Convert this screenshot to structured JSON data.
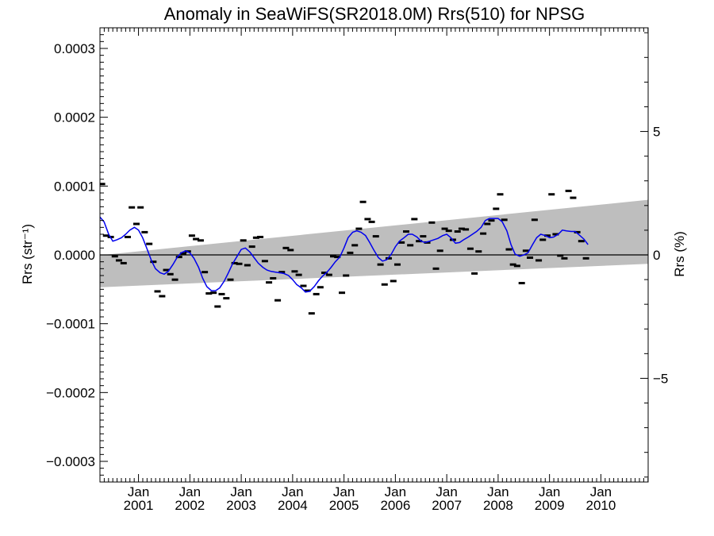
{
  "chart_data": {
    "type": "line",
    "title": "Anomaly in SeaWiFS(SR2018.0M) Rrs(510) for NPSG",
    "ylabel_left": "Rrs (str⁻¹)",
    "ylabel_right": "Rrs (%)",
    "ylim": [
      -0.00033,
      0.00033
    ],
    "ylim_right": [
      -9.2,
      9.2
    ],
    "xlim": [
      2000.25,
      2010.92
    ],
    "y_ticks": [
      {
        "value": 0.0003,
        "label": "0.0003"
      },
      {
        "value": 0.0002,
        "label": "0.0002"
      },
      {
        "value": 0.0001,
        "label": "0.0001"
      },
      {
        "value": 0.0,
        "label": "0.0000"
      },
      {
        "value": -0.0001,
        "label": "−0.0001"
      },
      {
        "value": -0.0002,
        "label": "−0.0002"
      },
      {
        "value": -0.0003,
        "label": "−0.0003"
      }
    ],
    "y_ticks_right": [
      {
        "value": 5,
        "label": "5"
      },
      {
        "value": 0,
        "label": "0"
      },
      {
        "value": -5,
        "label": "−5"
      }
    ],
    "x_ticks": [
      {
        "value": 2001.0,
        "month": "Jan",
        "year": "2001"
      },
      {
        "value": 2002.0,
        "month": "Jan",
        "year": "2002"
      },
      {
        "value": 2003.0,
        "month": "Jan",
        "year": "2003"
      },
      {
        "value": 2004.0,
        "month": "Jan",
        "year": "2004"
      },
      {
        "value": 2005.0,
        "month": "Jan",
        "year": "2005"
      },
      {
        "value": 2006.0,
        "month": "Jan",
        "year": "2006"
      },
      {
        "value": 2007.0,
        "month": "Jan",
        "year": "2007"
      },
      {
        "value": 2008.0,
        "month": "Jan",
        "year": "2008"
      },
      {
        "value": 2009.0,
        "month": "Jan",
        "year": "2009"
      },
      {
        "value": 2010.0,
        "month": "Jan",
        "year": "2010"
      }
    ],
    "trend_band": {
      "x": [
        2000.25,
        2010.92
      ],
      "upper": [
        -5e-07,
        8e-05
      ],
      "lower": [
        -4.7e-05,
        -1.3e-05
      ]
    },
    "zero_line": 0,
    "series": [
      {
        "kind": "monthly_anomaly",
        "points": [
          [
            2000.29,
            0.000103
          ],
          [
            2000.37,
            2.8e-05
          ],
          [
            2000.46,
            2.6e-05
          ],
          [
            2000.54,
            -2e-06
          ],
          [
            2000.62,
            -8e-06
          ],
          [
            2000.71,
            -1.2e-05
          ],
          [
            2000.79,
            2.6e-05
          ],
          [
            2000.87,
            6.9e-05
          ],
          [
            2000.96,
            4.5e-05
          ],
          [
            2001.04,
            6.9e-05
          ],
          [
            2001.12,
            3.3e-05
          ],
          [
            2001.21,
            1.6e-05
          ],
          [
            2001.29,
            -1e-05
          ],
          [
            2001.37,
            -5.3e-05
          ],
          [
            2001.46,
            -6e-05
          ],
          [
            2001.54,
            -2.2e-05
          ],
          [
            2001.62,
            -2.8e-05
          ],
          [
            2001.71,
            -3.6e-05
          ],
          [
            2001.79,
            -3e-06
          ],
          [
            2001.87,
            2e-06
          ],
          [
            2001.96,
            5e-06
          ],
          [
            2002.04,
            2.8e-05
          ],
          [
            2002.12,
            2.3e-05
          ],
          [
            2002.21,
            2.1e-05
          ],
          [
            2002.29,
            -2.5e-05
          ],
          [
            2002.37,
            -5.6e-05
          ],
          [
            2002.46,
            -5.5e-05
          ],
          [
            2002.54,
            -7.5e-05
          ],
          [
            2002.62,
            -5.7e-05
          ],
          [
            2002.71,
            -6.3e-05
          ],
          [
            2002.79,
            -3.6e-05
          ],
          [
            2002.87,
            -1.2e-05
          ],
          [
            2002.96,
            -1.3e-05
          ],
          [
            2003.04,
            2.1e-05
          ],
          [
            2003.12,
            -1.5e-05
          ],
          [
            2003.21,
            1.2e-05
          ],
          [
            2003.29,
            2.5e-05
          ],
          [
            2003.37,
            2.6e-05
          ],
          [
            2003.46,
            -9e-06
          ],
          [
            2003.54,
            -4e-05
          ],
          [
            2003.62,
            -3.4e-05
          ],
          [
            2003.71,
            -6.6e-05
          ],
          [
            2003.79,
            -2.5e-05
          ],
          [
            2003.87,
            1e-05
          ],
          [
            2003.96,
            7e-06
          ],
          [
            2004.04,
            -2.4e-05
          ],
          [
            2004.12,
            -2.9e-05
          ],
          [
            2004.21,
            -4.5e-05
          ],
          [
            2004.29,
            -5.2e-05
          ],
          [
            2004.37,
            -8.5e-05
          ],
          [
            2004.46,
            -5.7e-05
          ],
          [
            2004.54,
            -4.7e-05
          ],
          [
            2004.62,
            -2.6e-05
          ],
          [
            2004.71,
            -2.9e-05
          ],
          [
            2004.79,
            -2e-06
          ],
          [
            2004.87,
            -3e-06
          ],
          [
            2004.96,
            -5.5e-05
          ],
          [
            2005.04,
            -3e-05
          ],
          [
            2005.12,
            3e-06
          ],
          [
            2005.21,
            1.4e-05
          ],
          [
            2005.29,
            3.8e-05
          ],
          [
            2005.37,
            7.7e-05
          ],
          [
            2005.46,
            5.2e-05
          ],
          [
            2005.54,
            4.8e-05
          ],
          [
            2005.62,
            2.7e-05
          ],
          [
            2005.71,
            -1.4e-05
          ],
          [
            2005.79,
            -4.3e-05
          ],
          [
            2005.87,
            -5e-06
          ],
          [
            2005.96,
            -3.8e-05
          ],
          [
            2006.04,
            -1.4e-05
          ],
          [
            2006.12,
            1.8e-05
          ],
          [
            2006.21,
            3.4e-05
          ],
          [
            2006.29,
            1.4e-05
          ],
          [
            2006.37,
            5.2e-05
          ],
          [
            2006.46,
            2e-05
          ],
          [
            2006.54,
            2.7e-05
          ],
          [
            2006.62,
            1.8e-05
          ],
          [
            2006.71,
            4.7e-05
          ],
          [
            2006.79,
            -2e-05
          ],
          [
            2006.87,
            6e-06
          ],
          [
            2006.96,
            3.8e-05
          ],
          [
            2007.04,
            3.5e-05
          ],
          [
            2007.12,
            2.2e-05
          ],
          [
            2007.21,
            3.4e-05
          ],
          [
            2007.29,
            3.8e-05
          ],
          [
            2007.37,
            3.7e-05
          ],
          [
            2007.46,
            9e-06
          ],
          [
            2007.54,
            -2.7e-05
          ],
          [
            2007.62,
            5e-06
          ],
          [
            2007.71,
            3.1e-05
          ],
          [
            2007.79,
            4.5e-05
          ],
          [
            2007.87,
            5e-05
          ],
          [
            2007.96,
            6.7e-05
          ],
          [
            2008.04,
            8.8e-05
          ],
          [
            2008.12,
            5.1e-05
          ],
          [
            2008.21,
            8e-06
          ],
          [
            2008.29,
            -1.4e-05
          ],
          [
            2008.37,
            -1.6e-05
          ],
          [
            2008.46,
            -4.1e-05
          ],
          [
            2008.54,
            6e-06
          ],
          [
            2008.62,
            -4e-06
          ],
          [
            2008.71,
            5.1e-05
          ],
          [
            2008.79,
            -8e-06
          ],
          [
            2008.87,
            2.2e-05
          ],
          [
            2008.96,
            2.8e-05
          ],
          [
            2009.04,
            8.8e-05
          ],
          [
            2009.12,
            3e-05
          ],
          [
            2009.21,
            -1e-06
          ],
          [
            2009.29,
            -5e-06
          ],
          [
            2009.37,
            9.3e-05
          ],
          [
            2009.46,
            8.3e-05
          ],
          [
            2009.54,
            3.3e-05
          ],
          [
            2009.62,
            2e-05
          ],
          [
            2009.71,
            -5e-06
          ]
        ]
      },
      {
        "kind": "smoothed",
        "color": "#0000ee",
        "points": [
          [
            2000.25,
            5.5e-05
          ],
          [
            2000.33,
            4.8e-05
          ],
          [
            2000.42,
            3e-05
          ],
          [
            2000.5,
            2e-05
          ],
          [
            2000.58,
            2.2e-05
          ],
          [
            2000.67,
            2.5e-05
          ],
          [
            2000.75,
            3e-05
          ],
          [
            2000.83,
            3.6e-05
          ],
          [
            2000.92,
            4e-05
          ],
          [
            2001.0,
            3.6e-05
          ],
          [
            2001.08,
            2.5e-05
          ],
          [
            2001.17,
            8e-06
          ],
          [
            2001.25,
            -8e-06
          ],
          [
            2001.33,
            -2e-05
          ],
          [
            2001.42,
            -2.6e-05
          ],
          [
            2001.5,
            -2.8e-05
          ],
          [
            2001.58,
            -2.4e-05
          ],
          [
            2001.67,
            -1.4e-05
          ],
          [
            2001.75,
            -4e-06
          ],
          [
            2001.83,
            3e-06
          ],
          [
            2001.92,
            6e-06
          ],
          [
            2002.0,
            3e-06
          ],
          [
            2002.08,
            -5e-06
          ],
          [
            2002.17,
            -1.8e-05
          ],
          [
            2002.25,
            -3.4e-05
          ],
          [
            2002.33,
            -4.6e-05
          ],
          [
            2002.42,
            -5.2e-05
          ],
          [
            2002.5,
            -5.2e-05
          ],
          [
            2002.58,
            -4.8e-05
          ],
          [
            2002.67,
            -3.8e-05
          ],
          [
            2002.75,
            -2.6e-05
          ],
          [
            2002.83,
            -1.3e-05
          ],
          [
            2002.92,
            -2e-06
          ],
          [
            2003.0,
            8e-06
          ],
          [
            2003.08,
            1e-05
          ],
          [
            2003.17,
            4e-06
          ],
          [
            2003.25,
            -4e-06
          ],
          [
            2003.33,
            -1.2e-05
          ],
          [
            2003.42,
            -1.8e-05
          ],
          [
            2003.5,
            -2.2e-05
          ],
          [
            2003.58,
            -2.4e-05
          ],
          [
            2003.67,
            -2.5e-05
          ],
          [
            2003.75,
            -2.6e-05
          ],
          [
            2003.83,
            -2.7e-05
          ],
          [
            2003.92,
            -3e-05
          ],
          [
            2004.0,
            -3.6e-05
          ],
          [
            2004.08,
            -4.3e-05
          ],
          [
            2004.17,
            -4.8e-05
          ],
          [
            2004.25,
            -5.4e-05
          ],
          [
            2004.33,
            -5.3e-05
          ],
          [
            2004.42,
            -4.6e-05
          ],
          [
            2004.5,
            -3.8e-05
          ],
          [
            2004.58,
            -3.1e-05
          ],
          [
            2004.67,
            -2.5e-05
          ],
          [
            2004.75,
            -1.8e-05
          ],
          [
            2004.83,
            -1e-05
          ],
          [
            2004.92,
            -3e-06
          ],
          [
            2005.0,
            1e-05
          ],
          [
            2005.08,
            2.5e-05
          ],
          [
            2005.17,
            3.3e-05
          ],
          [
            2005.25,
            3.5e-05
          ],
          [
            2005.33,
            3.3e-05
          ],
          [
            2005.42,
            2.8e-05
          ],
          [
            2005.5,
            1.8e-05
          ],
          [
            2005.58,
            7e-06
          ],
          [
            2005.67,
            -4e-06
          ],
          [
            2005.75,
            -9e-06
          ],
          [
            2005.83,
            -7e-06
          ],
          [
            2005.92,
            1e-06
          ],
          [
            2006.0,
            1.2e-05
          ],
          [
            2006.08,
            2e-05
          ],
          [
            2006.17,
            2.5e-05
          ],
          [
            2006.25,
            3e-05
          ],
          [
            2006.33,
            3e-05
          ],
          [
            2006.42,
            2.6e-05
          ],
          [
            2006.5,
            2e-05
          ],
          [
            2006.58,
            1.8e-05
          ],
          [
            2006.67,
            2e-05
          ],
          [
            2006.75,
            2.2e-05
          ],
          [
            2006.83,
            2.4e-05
          ],
          [
            2006.92,
            2.8e-05
          ],
          [
            2007.0,
            3e-05
          ],
          [
            2007.08,
            2.5e-05
          ],
          [
            2007.17,
            1.7e-05
          ],
          [
            2007.25,
            1.8e-05
          ],
          [
            2007.33,
            2.2e-05
          ],
          [
            2007.42,
            2.6e-05
          ],
          [
            2007.5,
            3e-05
          ],
          [
            2007.58,
            3.4e-05
          ],
          [
            2007.67,
            4e-05
          ],
          [
            2007.75,
            5e-05
          ],
          [
            2007.83,
            5.3e-05
          ],
          [
            2007.92,
            5.3e-05
          ],
          [
            2008.0,
            5.3e-05
          ],
          [
            2008.08,
            4.8e-05
          ],
          [
            2008.17,
            3.5e-05
          ],
          [
            2008.25,
            1.5e-05
          ],
          [
            2008.33,
            1e-06
          ],
          [
            2008.42,
            -2e-06
          ],
          [
            2008.5,
            0.0
          ],
          [
            2008.58,
            3e-06
          ],
          [
            2008.67,
            1.5e-05
          ],
          [
            2008.75,
            2.5e-05
          ],
          [
            2008.83,
            3e-05
          ],
          [
            2008.92,
            2.8e-05
          ],
          [
            2009.0,
            2.5e-05
          ],
          [
            2009.08,
            2.6e-05
          ],
          [
            2009.17,
            3e-05
          ],
          [
            2009.25,
            3.6e-05
          ],
          [
            2009.33,
            3.5e-05
          ],
          [
            2009.42,
            3.4e-05
          ],
          [
            2009.5,
            3.4e-05
          ],
          [
            2009.58,
            2.9e-05
          ],
          [
            2009.67,
            2.3e-05
          ],
          [
            2009.75,
            1.5e-05
          ]
        ]
      }
    ]
  }
}
